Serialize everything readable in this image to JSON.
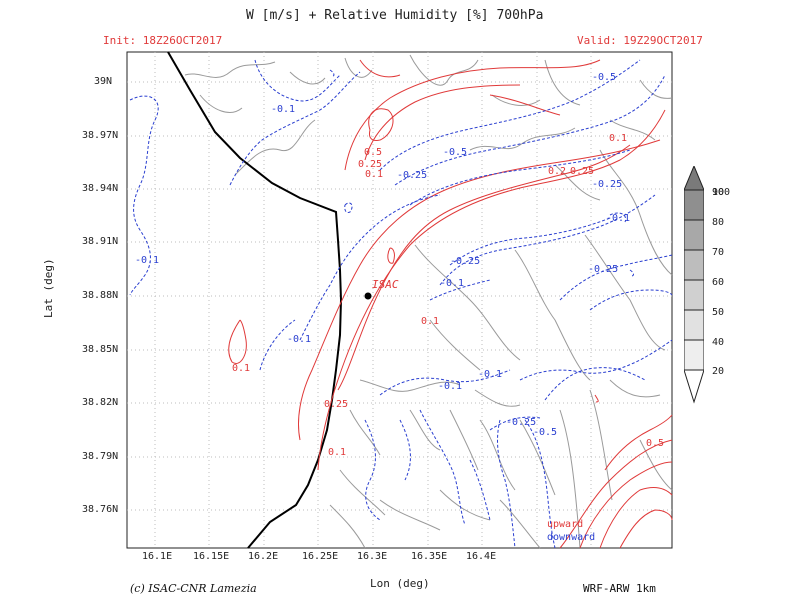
{
  "title": "W [m/s] + Relative Humidity [%] 700hPa",
  "init_label": "Init: 18Z26OCT2017",
  "valid_label": "Valid: 19Z29OCT2017",
  "x_axis_label": "Lon (deg)",
  "y_axis_label": "Lat (deg)",
  "x_ticks": [
    "16.1E",
    "16.15E",
    "16.2E",
    "16.25E",
    "16.3E",
    "16.35E",
    "16.4E"
  ],
  "y_ticks": [
    "39N",
    "38.97N",
    "38.94N",
    "38.91N",
    "38.88N",
    "38.85N",
    "38.82N",
    "38.79N",
    "38.76N"
  ],
  "colorbar_levels": [
    "100",
    "90",
    "80",
    "70",
    "60",
    "50",
    "40",
    "20"
  ],
  "station": {
    "name": "ISAC"
  },
  "legend": {
    "upward": "upward",
    "downward": "downward"
  },
  "footer_left": "(c) ISAC-CNR Lamezia",
  "footer_right": "WRF-ARW 1km",
  "colors": {
    "upward": "#e03a3a",
    "downward": "#2a3fd0",
    "terrain": "#9a9a9a",
    "coast": "#000000"
  },
  "contour_labels": {
    "red": [
      "0.5",
      "0.25",
      "0.1",
      "0.2",
      "0.25",
      "0.1",
      "0.1",
      "0.1",
      "0.25",
      "0.1",
      "0.5"
    ],
    "blue": [
      "-0.5",
      "-0.1",
      "-0.5",
      "-0.25",
      "-0.25",
      "-0.1",
      "-0.1",
      "-0.25",
      "-0.1",
      "-0.25",
      "-0.1",
      "-0.1",
      "-0.1",
      "-0.25",
      "-0.5"
    ]
  }
}
